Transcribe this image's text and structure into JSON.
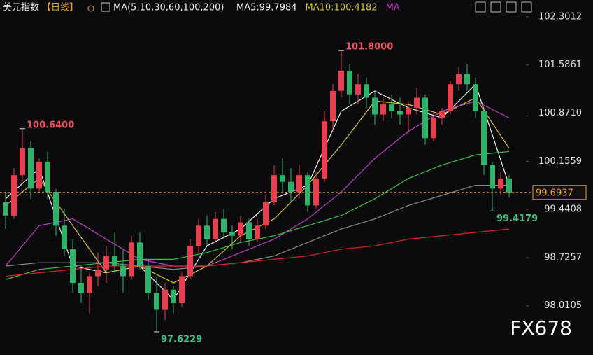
{
  "chart_data": {
    "type": "candlestick",
    "header": {
      "name": "美元指数",
      "period": "【日线】",
      "ma_params": "MA(5,10,30,60,100,200)"
    },
    "watermark": "FX678",
    "ylim": [
      97.28,
      102.55
    ],
    "yticks": [
      102.3012,
      101.5861,
      {
        "value": 100.871,
        "label": "100.8710"
      },
      100.1559,
      99.4408,
      98.7257,
      98.0105
    ],
    "up_color": "#e8404e",
    "down_color": "#2fb36a",
    "open": [
      99.55,
      99.35,
      99.95,
      100.35,
      99.75,
      100.15,
      99.7,
      99.2,
      98.85,
      98.35,
      98.2,
      98.45,
      98.55,
      98.75,
      98.6,
      98.45,
      98.95,
      98.6,
      98.2,
      97.95,
      98.25,
      98.05,
      98.45,
      98.9,
      99.2,
      99.0,
      99.3,
      99.1,
      99.05,
      99.25,
      99.0,
      99.2,
      99.55,
      99.95,
      99.85,
      99.7,
      99.95,
      99.5,
      99.9,
      100.75,
      101.2,
      101.5,
      101.15,
      101.3,
      101.1,
      100.85,
      101.0,
      100.9,
      100.85,
      100.95,
      101.1,
      100.5,
      100.8,
      100.9,
      101.3,
      101.45,
      101.3,
      100.9,
      100.1,
      99.75,
      99.9
    ],
    "high": [
      99.7,
      100.05,
      100.64,
      100.45,
      100.2,
      100.3,
      99.75,
      99.45,
      99.0,
      98.6,
      98.5,
      98.8,
      98.9,
      99.1,
      98.85,
      99.05,
      99.1,
      98.7,
      98.45,
      98.35,
      98.3,
      98.5,
      99.0,
      99.3,
      99.35,
      99.4,
      99.45,
      99.2,
      99.35,
      99.3,
      99.3,
      99.65,
      100.1,
      100.2,
      100.05,
      100.1,
      100.0,
      100.0,
      100.9,
      101.3,
      101.8,
      101.6,
      101.45,
      101.4,
      101.2,
      101.1,
      101.15,
      101.1,
      101.05,
      101.25,
      101.15,
      100.9,
      100.95,
      101.35,
      101.55,
      101.6,
      101.4,
      100.95,
      100.15,
      100.0,
      99.95
    ],
    "low": [
      99.15,
      99.3,
      99.85,
      99.6,
      99.7,
      99.6,
      99.05,
      98.75,
      98.2,
      98.05,
      97.9,
      98.3,
      98.35,
      98.5,
      98.2,
      98.4,
      98.55,
      98.1,
      97.6229,
      97.8,
      97.9,
      98.0,
      98.4,
      98.8,
      98.9,
      98.95,
      99.0,
      98.85,
      98.95,
      98.9,
      98.95,
      99.15,
      99.5,
      99.7,
      99.55,
      99.6,
      99.4,
      99.45,
      99.85,
      100.6,
      101.1,
      101.0,
      101.0,
      100.95,
      100.7,
      100.75,
      100.8,
      100.7,
      100.6,
      100.85,
      100.4,
      100.45,
      100.7,
      100.85,
      101.2,
      101.2,
      100.8,
      99.95,
      99.4179,
      99.65,
      99.62
    ],
    "close": [
      99.35,
      99.95,
      100.35,
      99.75,
      100.15,
      99.7,
      99.2,
      98.85,
      98.35,
      98.2,
      98.45,
      98.55,
      98.75,
      98.6,
      98.45,
      98.95,
      98.6,
      98.2,
      97.95,
      98.25,
      98.05,
      98.45,
      98.9,
      99.2,
      99.0,
      99.3,
      99.1,
      99.05,
      99.25,
      99.0,
      99.2,
      99.55,
      99.95,
      99.85,
      99.7,
      99.95,
      99.5,
      99.9,
      100.75,
      101.2,
      101.5,
      101.15,
      101.3,
      101.1,
      100.85,
      101.0,
      100.9,
      100.85,
      100.95,
      101.1,
      100.5,
      100.8,
      100.9,
      101.3,
      101.45,
      101.3,
      100.9,
      100.1,
      99.75,
      99.9,
      99.6937
    ],
    "last_price": 99.6937,
    "last_color": "#f0a030",
    "series": [
      {
        "label": "MA5:99.7984",
        "color": "#f2f2f2",
        "x": [
          0,
          4,
          8,
          12,
          16,
          20,
          24,
          28,
          32,
          36,
          40,
          44,
          48,
          52,
          56,
          60
        ],
        "values": [
          99.6,
          100.05,
          98.6,
          98.5,
          98.6,
          98.1,
          98.9,
          99.15,
          99.6,
          99.8,
          100.9,
          101.2,
          100.95,
          100.8,
          101.3,
          99.8
        ]
      },
      {
        "label": "MA10:100.4182",
        "color": "#d8c830",
        "x": [
          0,
          4,
          8,
          12,
          16,
          20,
          24,
          28,
          32,
          36,
          40,
          44,
          48,
          52,
          56,
          60
        ],
        "values": [
          99.5,
          99.9,
          99.2,
          98.5,
          98.6,
          98.35,
          98.6,
          99.05,
          99.3,
          99.8,
          100.4,
          101.05,
          101.0,
          100.85,
          101.1,
          100.35
        ]
      },
      {
        "label": "MA",
        "color": "#c040c8",
        "x": [
          0,
          4,
          8,
          12,
          16,
          20,
          24,
          28,
          32,
          36,
          40,
          44,
          48,
          52,
          56,
          60
        ],
        "values": [
          98.6,
          99.2,
          99.3,
          99.0,
          98.7,
          98.6,
          98.6,
          98.8,
          99.0,
          99.3,
          99.7,
          100.2,
          100.6,
          100.9,
          101.05,
          100.8
        ]
      },
      {
        "color": "#3cc040",
        "x": [
          0,
          4,
          8,
          12,
          16,
          20,
          24,
          28,
          32,
          36,
          40,
          44,
          48,
          52,
          56,
          60
        ],
        "values": [
          98.4,
          98.55,
          98.6,
          98.65,
          98.7,
          98.7,
          98.8,
          98.95,
          99.05,
          99.2,
          99.35,
          99.6,
          99.9,
          100.1,
          100.25,
          100.3
        ]
      },
      {
        "color": "#8a8a8a",
        "x": [
          0,
          4,
          8,
          12,
          16,
          20,
          24,
          28,
          32,
          36,
          40,
          44,
          48,
          52,
          56,
          60
        ],
        "values": [
          98.6,
          98.65,
          98.65,
          98.65,
          98.6,
          98.55,
          98.6,
          98.65,
          98.75,
          98.95,
          99.15,
          99.3,
          99.5,
          99.65,
          99.8,
          99.8
        ]
      },
      {
        "color": "#d02828",
        "x": [
          0,
          4,
          8,
          12,
          16,
          20,
          24,
          28,
          32,
          36,
          40,
          44,
          48,
          52,
          56,
          60
        ],
        "values": [
          98.45,
          98.5,
          98.55,
          98.6,
          98.6,
          98.6,
          98.6,
          98.65,
          98.7,
          98.75,
          98.85,
          98.9,
          99.0,
          99.05,
          99.1,
          99.15
        ]
      }
    ],
    "annotations": [
      {
        "label": "100.6400",
        "value": 100.64,
        "index": 2,
        "side": "high"
      },
      {
        "label": "101.8000",
        "value": 101.8,
        "index": 40,
        "side": "high"
      },
      {
        "label": "97.6229",
        "value": 97.6229,
        "index": 18,
        "side": "low"
      },
      {
        "label": "99.4179",
        "value": 99.4179,
        "index": 58,
        "side": "low"
      }
    ]
  }
}
